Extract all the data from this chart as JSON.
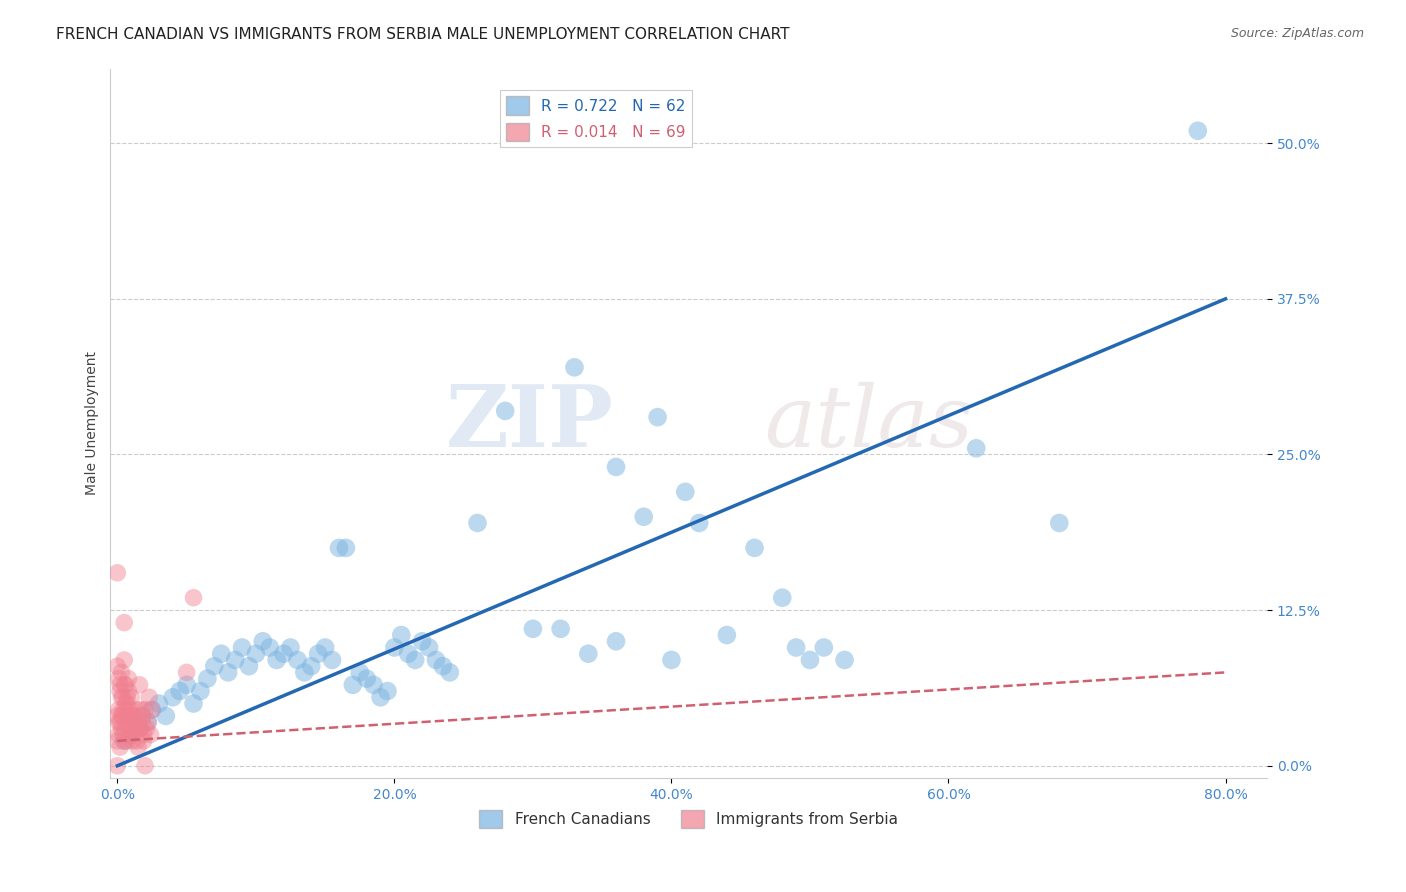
{
  "title": "FRENCH CANADIAN VS IMMIGRANTS FROM SERBIA MALE UNEMPLOYMENT CORRELATION CHART",
  "source": "Source: ZipAtlas.com",
  "xlabel_ticks": [
    "0.0%",
    "20.0%",
    "40.0%",
    "60.0%",
    "80.0%"
  ],
  "ylabel_ticks": [
    "0.0%",
    "12.5%",
    "25.0%",
    "37.5%",
    "50.0%"
  ],
  "xlim": [
    -0.005,
    0.83
  ],
  "ylim": [
    -0.01,
    0.56
  ],
  "ylabel": "Male Unemployment",
  "blue_scatter": [
    [
      0.005,
      0.02
    ],
    [
      0.01,
      0.025
    ],
    [
      0.015,
      0.03
    ],
    [
      0.018,
      0.04
    ],
    [
      0.022,
      0.035
    ],
    [
      0.025,
      0.045
    ],
    [
      0.03,
      0.05
    ],
    [
      0.035,
      0.04
    ],
    [
      0.04,
      0.055
    ],
    [
      0.045,
      0.06
    ],
    [
      0.05,
      0.065
    ],
    [
      0.055,
      0.05
    ],
    [
      0.06,
      0.06
    ],
    [
      0.065,
      0.07
    ],
    [
      0.07,
      0.08
    ],
    [
      0.075,
      0.09
    ],
    [
      0.08,
      0.075
    ],
    [
      0.085,
      0.085
    ],
    [
      0.09,
      0.095
    ],
    [
      0.095,
      0.08
    ],
    [
      0.1,
      0.09
    ],
    [
      0.105,
      0.1
    ],
    [
      0.11,
      0.095
    ],
    [
      0.115,
      0.085
    ],
    [
      0.12,
      0.09
    ],
    [
      0.125,
      0.095
    ],
    [
      0.13,
      0.085
    ],
    [
      0.135,
      0.075
    ],
    [
      0.14,
      0.08
    ],
    [
      0.145,
      0.09
    ],
    [
      0.15,
      0.095
    ],
    [
      0.155,
      0.085
    ],
    [
      0.16,
      0.175
    ],
    [
      0.165,
      0.175
    ],
    [
      0.17,
      0.065
    ],
    [
      0.175,
      0.075
    ],
    [
      0.18,
      0.07
    ],
    [
      0.185,
      0.065
    ],
    [
      0.19,
      0.055
    ],
    [
      0.195,
      0.06
    ],
    [
      0.2,
      0.095
    ],
    [
      0.205,
      0.105
    ],
    [
      0.21,
      0.09
    ],
    [
      0.215,
      0.085
    ],
    [
      0.22,
      0.1
    ],
    [
      0.225,
      0.095
    ],
    [
      0.23,
      0.085
    ],
    [
      0.235,
      0.08
    ],
    [
      0.24,
      0.075
    ],
    [
      0.26,
      0.195
    ],
    [
      0.3,
      0.11
    ],
    [
      0.32,
      0.11
    ],
    [
      0.34,
      0.09
    ],
    [
      0.36,
      0.1
    ],
    [
      0.38,
      0.2
    ],
    [
      0.4,
      0.085
    ],
    [
      0.42,
      0.195
    ],
    [
      0.44,
      0.105
    ],
    [
      0.46,
      0.175
    ],
    [
      0.49,
      0.095
    ],
    [
      0.62,
      0.255
    ],
    [
      0.68,
      0.195
    ],
    [
      0.78,
      0.51
    ]
  ],
  "blue_scatter_high": [
    [
      0.33,
      0.32
    ],
    [
      0.39,
      0.28
    ],
    [
      0.28,
      0.285
    ],
    [
      0.36,
      0.24
    ],
    [
      0.41,
      0.22
    ],
    [
      0.48,
      0.135
    ],
    [
      0.5,
      0.085
    ],
    [
      0.51,
      0.095
    ],
    [
      0.525,
      0.085
    ]
  ],
  "pink_scatter": [
    [
      0.0,
      0.02
    ],
    [
      0.001,
      0.035
    ],
    [
      0.002,
      0.015
    ],
    [
      0.003,
      0.04
    ],
    [
      0.004,
      0.025
    ],
    [
      0.005,
      0.03
    ],
    [
      0.006,
      0.05
    ],
    [
      0.007,
      0.02
    ],
    [
      0.008,
      0.04
    ],
    [
      0.009,
      0.025
    ],
    [
      0.01,
      0.055
    ],
    [
      0.011,
      0.02
    ],
    [
      0.012,
      0.04
    ],
    [
      0.013,
      0.03
    ],
    [
      0.014,
      0.045
    ],
    [
      0.015,
      0.015
    ],
    [
      0.016,
      0.065
    ],
    [
      0.017,
      0.03
    ],
    [
      0.018,
      0.035
    ],
    [
      0.019,
      0.02
    ],
    [
      0.02,
      0.045
    ],
    [
      0.021,
      0.03
    ],
    [
      0.022,
      0.035
    ],
    [
      0.023,
      0.055
    ],
    [
      0.024,
      0.025
    ],
    [
      0.025,
      0.045
    ],
    [
      0.0,
      0.08
    ],
    [
      0.001,
      0.07
    ],
    [
      0.002,
      0.065
    ],
    [
      0.003,
      0.075
    ],
    [
      0.004,
      0.055
    ],
    [
      0.005,
      0.085
    ],
    [
      0.006,
      0.065
    ],
    [
      0.007,
      0.055
    ],
    [
      0.008,
      0.07
    ],
    [
      0.0,
      0.155
    ],
    [
      0.001,
      0.045
    ],
    [
      0.002,
      0.06
    ],
    [
      0.003,
      0.055
    ],
    [
      0.004,
      0.04
    ],
    [
      0.005,
      0.065
    ],
    [
      0.006,
      0.045
    ],
    [
      0.007,
      0.05
    ],
    [
      0.008,
      0.06
    ],
    [
      0.0,
      0.04
    ],
    [
      0.001,
      0.025
    ],
    [
      0.002,
      0.035
    ],
    [
      0.003,
      0.03
    ],
    [
      0.004,
      0.045
    ],
    [
      0.005,
      0.02
    ],
    [
      0.006,
      0.04
    ],
    [
      0.007,
      0.035
    ],
    [
      0.008,
      0.03
    ],
    [
      0.009,
      0.045
    ],
    [
      0.01,
      0.025
    ],
    [
      0.011,
      0.04
    ],
    [
      0.012,
      0.035
    ],
    [
      0.013,
      0.03
    ],
    [
      0.014,
      0.02
    ],
    [
      0.015,
      0.035
    ],
    [
      0.016,
      0.03
    ],
    [
      0.017,
      0.045
    ],
    [
      0.018,
      0.04
    ],
    [
      0.019,
      0.025
    ],
    [
      0.02,
      0.0
    ],
    [
      0.0,
      0.0
    ],
    [
      0.05,
      0.075
    ],
    [
      0.055,
      0.135
    ],
    [
      0.005,
      0.115
    ]
  ],
  "blue_line": {
    "x0": 0.0,
    "y0": 0.0,
    "x1": 0.8,
    "y1": 0.375
  },
  "pink_line": {
    "x0": 0.0,
    "y0": 0.02,
    "x1": 0.8,
    "y1": 0.075
  },
  "blue_color": "#7ab3e0",
  "pink_color": "#f08090",
  "blue_line_color": "#2468b4",
  "pink_line_color": "#d06070",
  "tick_color": "#4488cc",
  "grid_color": "#cccccc",
  "background_color": "#ffffff",
  "title_fontsize": 11,
  "axis_label_fontsize": 10,
  "tick_fontsize": 10
}
